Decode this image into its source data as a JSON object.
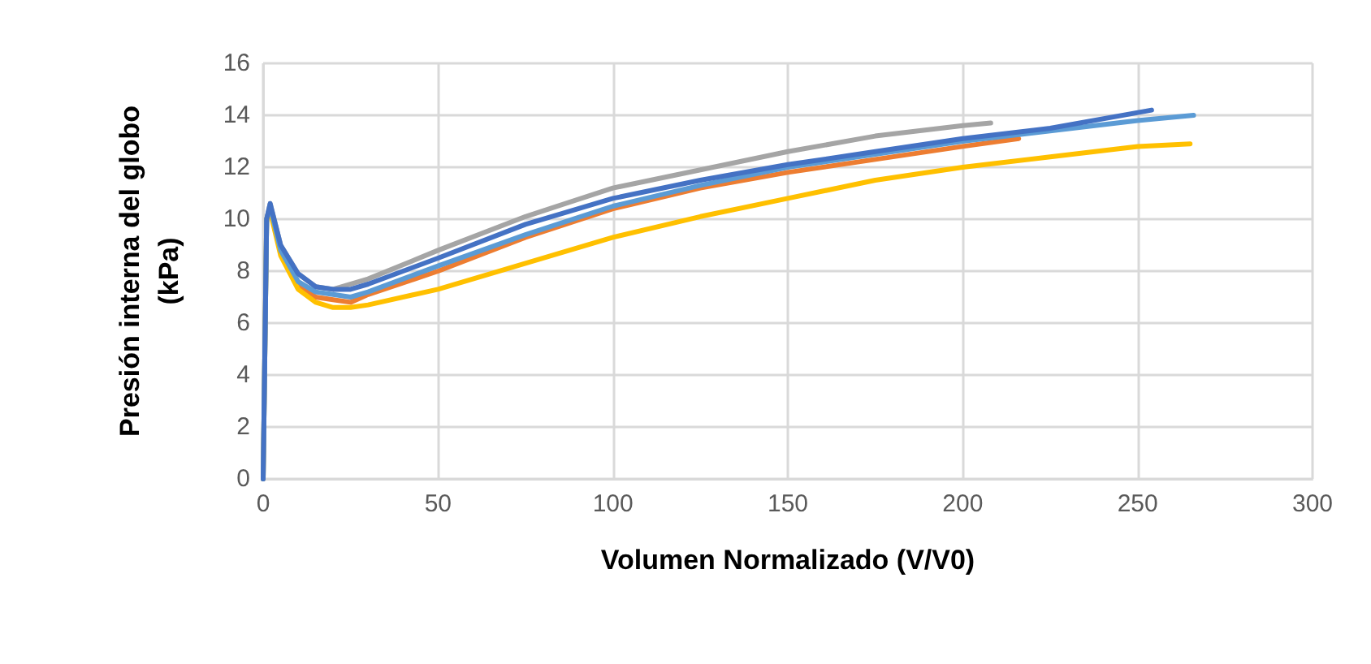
{
  "chart_data": {
    "type": "line",
    "xlabel": "Volumen Normalizado (V/V0)",
    "ylabel": "Presión interna del globo\n(kPa)",
    "xlim": [
      0,
      300
    ],
    "xticks": [
      0,
      50,
      100,
      150,
      200,
      250,
      300
    ],
    "ylim": [
      0,
      16
    ],
    "yticks": [
      0,
      2,
      4,
      6,
      8,
      10,
      12,
      14,
      16
    ],
    "grid": true,
    "marker": "none",
    "line_style": "solid",
    "series": [
      {
        "color": "#a5a5a5",
        "x": [
          0,
          1,
          2,
          5,
          10,
          15,
          20,
          30,
          50,
          75,
          100,
          125,
          150,
          175,
          200,
          208
        ],
        "values": [
          0,
          10,
          10.6,
          9,
          7.9,
          7.4,
          7.3,
          7.7,
          8.8,
          10.1,
          11.2,
          11.9,
          12.6,
          13.2,
          13.6,
          13.7
        ]
      },
      {
        "color": "#ed7d31",
        "x": [
          5,
          10,
          15,
          20,
          25,
          30,
          50,
          75,
          100,
          125,
          150,
          175,
          200,
          216
        ],
        "values": [
          8.7,
          7.5,
          7.0,
          6.9,
          6.8,
          7.1,
          8.0,
          9.3,
          10.4,
          11.2,
          11.8,
          12.3,
          12.8,
          13.1
        ]
      },
      {
        "color": "#ffc000",
        "x": [
          0,
          1,
          2,
          5,
          10,
          15,
          20,
          25,
          30,
          50,
          75,
          100,
          125,
          150,
          175,
          200,
          225,
          250,
          265
        ],
        "values": [
          0,
          10,
          10.3,
          8.6,
          7.3,
          6.8,
          6.6,
          6.6,
          6.7,
          7.3,
          8.3,
          9.3,
          10.1,
          10.8,
          11.5,
          12.0,
          12.4,
          12.8,
          12.9
        ]
      },
      {
        "color": "#5b9bd5",
        "x": [
          0,
          1,
          2,
          5,
          10,
          15,
          20,
          25,
          30,
          50,
          75,
          100,
          125,
          150,
          175,
          200,
          225,
          250,
          266
        ],
        "values": [
          0,
          10,
          10.5,
          8.8,
          7.6,
          7.2,
          7.1,
          7.0,
          7.2,
          8.2,
          9.4,
          10.5,
          11.3,
          12.0,
          12.5,
          13.0,
          13.4,
          13.8,
          14.0
        ]
      },
      {
        "color": "#4472c4",
        "x": [
          0,
          1,
          2,
          5,
          10,
          15,
          20,
          25,
          30,
          50,
          75,
          100,
          125,
          150,
          175,
          200,
          225,
          254
        ],
        "values": [
          0,
          10,
          10.6,
          9,
          7.9,
          7.4,
          7.3,
          7.3,
          7.5,
          8.5,
          9.8,
          10.8,
          11.5,
          12.1,
          12.6,
          13.1,
          13.5,
          14.2
        ]
      }
    ]
  }
}
